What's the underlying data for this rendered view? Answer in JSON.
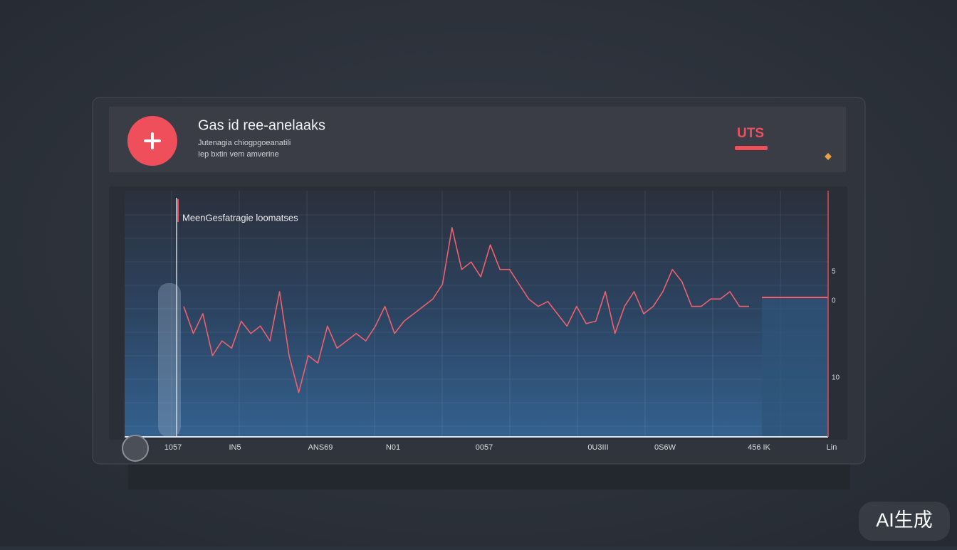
{
  "header": {
    "title": "Gas id ree-anelaaks",
    "subtitle_lines": [
      "Jutenagia chiogpgoeanatili",
      "Iep bxtin vem amverine"
    ],
    "badge": "UTS"
  },
  "chart_data": {
    "type": "line",
    "title": "MeenGesfatragie loomatses",
    "color": "#f0606c",
    "values": [
      53,
      42,
      50,
      33,
      39,
      36,
      47,
      42,
      45,
      39,
      59,
      33,
      18,
      33,
      30,
      45,
      36,
      39,
      42,
      39,
      45,
      53,
      42,
      47,
      50,
      53,
      56,
      62,
      85,
      68,
      71,
      65,
      78,
      68,
      68,
      62,
      56,
      53,
      55,
      50,
      45,
      53,
      46,
      47,
      59,
      42,
      53,
      59,
      50,
      53,
      59,
      68,
      63,
      53,
      53,
      56,
      56,
      59,
      53,
      53
    ],
    "ylim": [
      0,
      100
    ],
    "axis_labels": [
      "5",
      "0",
      "10"
    ],
    "x_labels": [
      "1057",
      "IN5",
      "ANS69",
      "N01",
      "0057",
      "0U3III",
      "0S6W",
      "456 IK",
      "Lin"
    ]
  },
  "watermark": "AI生成"
}
